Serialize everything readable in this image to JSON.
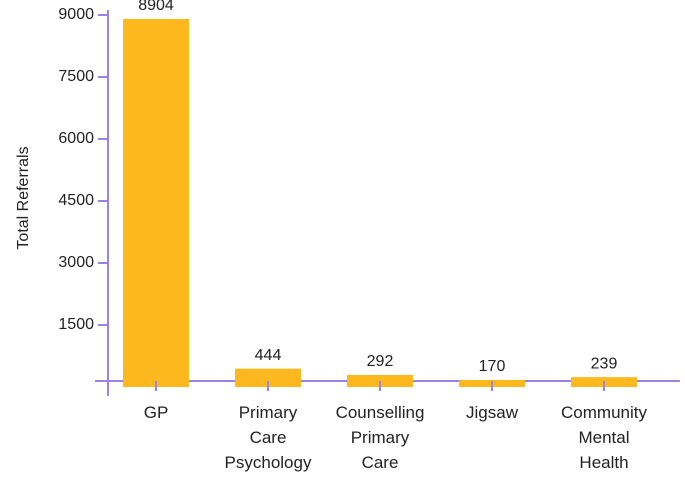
{
  "chart_data": {
    "type": "bar",
    "y_label": "Total Referrals",
    "categories": [
      "GP",
      "Primary Care Psychology",
      "Counselling Primary Care",
      "Jigsaw",
      "Community Mental Health"
    ],
    "values": [
      8904,
      444,
      292,
      170,
      239
    ],
    "color": "#fdb81e",
    "axis_color": "#9b82e6",
    "ylim": [
      0,
      9000
    ],
    "yticks": [
      1500,
      3000,
      4500,
      6000,
      7500,
      9000
    ],
    "grid": false
  }
}
